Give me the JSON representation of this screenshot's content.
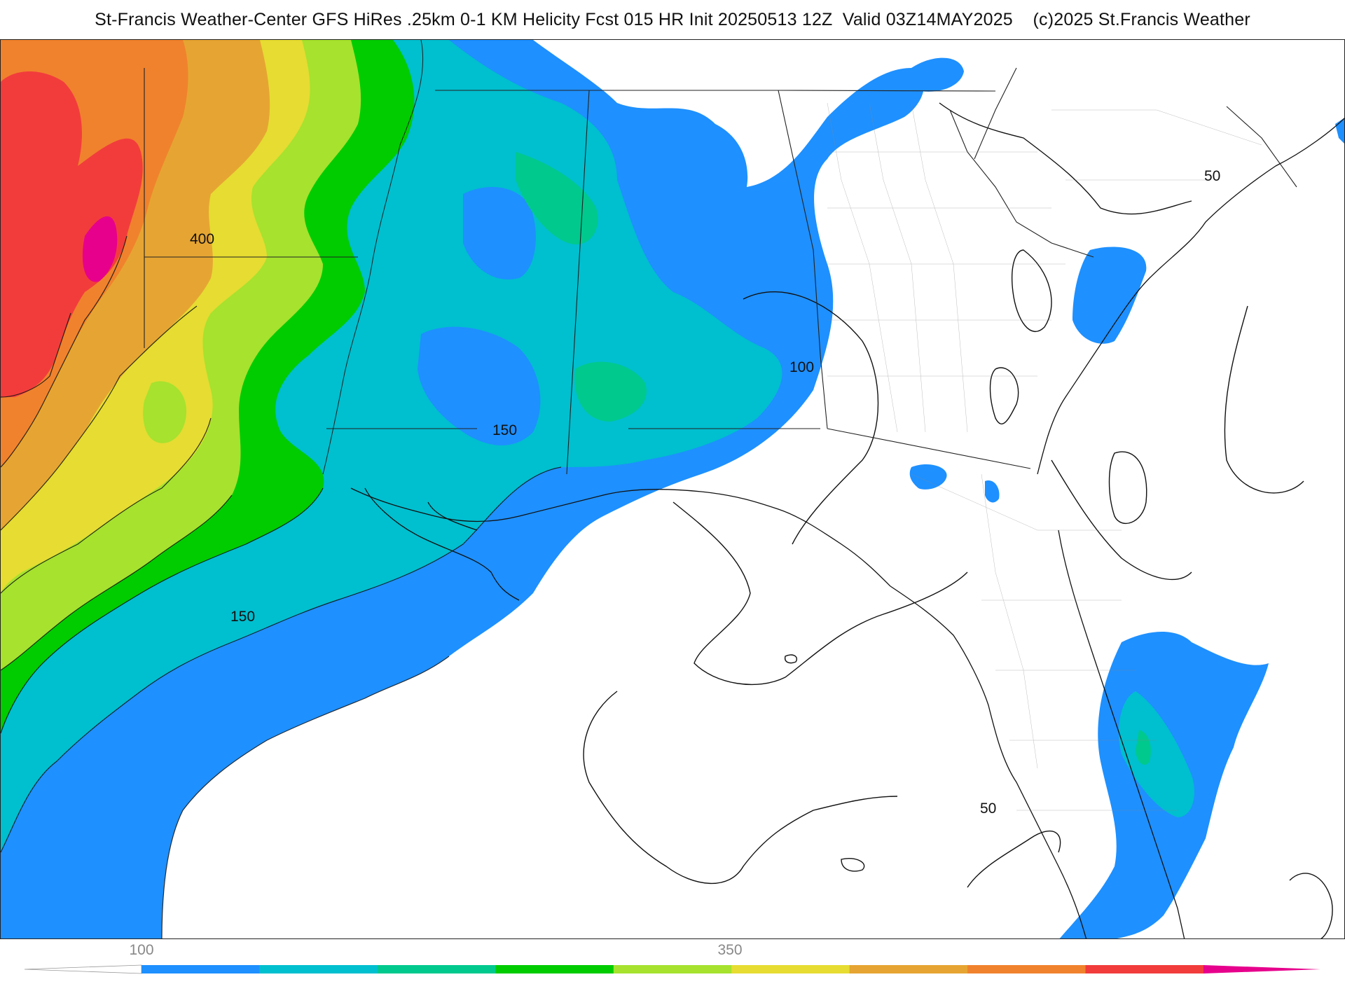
{
  "header": {
    "title": "St-Francis Weather-Center GFS HiRes .25km 0-1 KM Helicity Fcst 015 HR Init 20250513 12Z  Valid 03Z14MAY2025    (c)2025 St.Francis Weather"
  },
  "map": {
    "product": "0-1 KM Helicity",
    "model": "GFS HiRes .25km",
    "forecast_hour": "015",
    "init": "20250513 12Z",
    "valid": "03Z14MAY2025",
    "contour_labels": [
      "400",
      "150",
      "150",
      "100",
      "50",
      "50"
    ]
  },
  "legend": {
    "tick_labels": [
      "100",
      "350"
    ],
    "bands": [
      {
        "color": "#ffffff"
      },
      {
        "color": "#1e90ff"
      },
      {
        "color": "#00bfcf"
      },
      {
        "color": "#00c98e"
      },
      {
        "color": "#00cc00"
      },
      {
        "color": "#a6e22e"
      },
      {
        "color": "#e6dc32"
      },
      {
        "color": "#e6a532"
      },
      {
        "color": "#f0822d"
      },
      {
        "color": "#f23c3c"
      },
      {
        "color": "#e6008c"
      }
    ]
  }
}
